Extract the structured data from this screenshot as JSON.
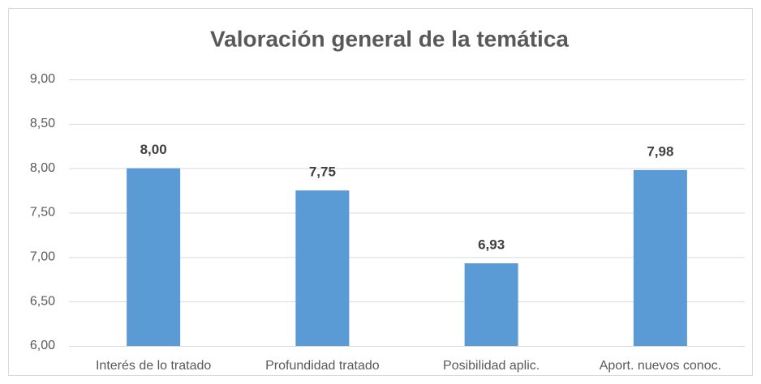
{
  "chart_data": {
    "type": "bar",
    "title": "Valoración general de la temática",
    "categories": [
      "Interés de lo tratado",
      "Profundidad tratado",
      "Posibilidad aplic.",
      "Aport. nuevos conoc."
    ],
    "values": [
      8.0,
      7.75,
      6.93,
      7.98
    ],
    "value_labels": [
      "8,00",
      "7,75",
      "6,93",
      "7,98"
    ],
    "color": "#5b9bd5",
    "ylim": [
      6,
      9
    ],
    "yticks": [
      {
        "value": 6,
        "label": "6,00"
      },
      {
        "value": 6.5,
        "label": "6,50"
      },
      {
        "value": 7,
        "label": "7,00"
      },
      {
        "value": 7.5,
        "label": "7,50"
      },
      {
        "value": 8,
        "label": "8,00"
      },
      {
        "value": 8.5,
        "label": "8,50"
      },
      {
        "value": 9,
        "label": "9,00"
      }
    ],
    "grid": true
  }
}
